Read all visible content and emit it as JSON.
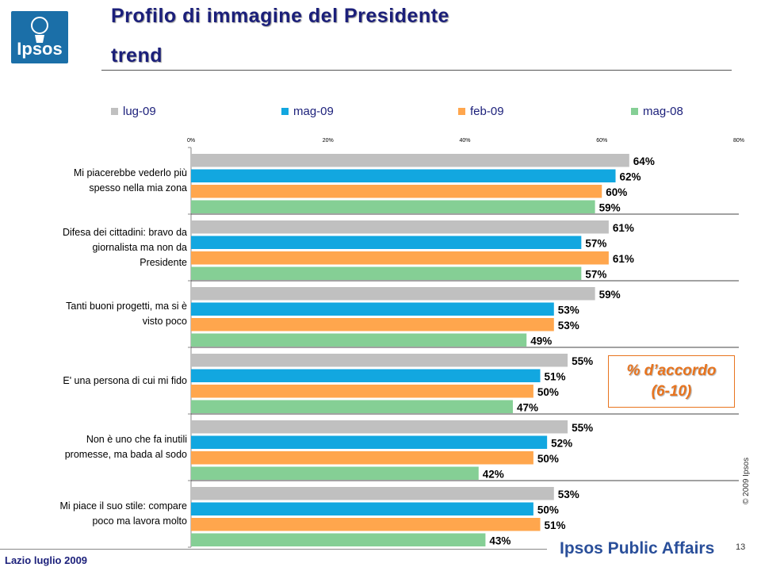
{
  "header": {
    "logo_text": "Ipsos",
    "title": "Profilo di immagine del Presidente",
    "subtitle": "trend"
  },
  "annotation": {
    "line1": "% d’accordo",
    "line2": "(6-10)"
  },
  "footer": {
    "left": "Lazio luglio 2009",
    "brand": "Ipsos Public Affairs",
    "copyright": "© 2009 Ipsos",
    "page_number": "13"
  },
  "colors": {
    "lug-09": "#c0c0c0",
    "mag-09": "#12a7e0",
    "feb-09": "#ffa64d",
    "mag-08": "#85cf95",
    "title": "#1b1f7a",
    "annotation": "#e8741e"
  },
  "chart_data": {
    "type": "bar",
    "orientation": "horizontal",
    "x_ticks": [
      "0%",
      "20%",
      "40%",
      "60%",
      "80%"
    ],
    "xlim": [
      0,
      80
    ],
    "legend_position": "top",
    "categories": [
      [
        "Mi piacerebbe vederlo più",
        "spesso nella mia zona"
      ],
      [
        "Difesa dei cittadini: bravo da",
        "giornalista ma non da",
        "Presidente"
      ],
      [
        "Tanti buoni progetti, ma si è",
        "visto poco"
      ],
      [
        "E' una persona di cui mi fido"
      ],
      [
        "Non è uno che fa inutili",
        "promesse, ma bada al sodo"
      ],
      [
        "Mi piace il suo stile: compare",
        "poco ma lavora molto"
      ]
    ],
    "series": [
      {
        "name": "lug-09",
        "values": [
          64,
          61,
          59,
          55,
          55,
          53
        ]
      },
      {
        "name": "mag-09",
        "values": [
          62,
          57,
          53,
          51,
          52,
          50
        ]
      },
      {
        "name": "feb-09",
        "values": [
          60,
          61,
          53,
          50,
          50,
          51
        ]
      },
      {
        "name": "mag-08",
        "values": [
          59,
          57,
          49,
          47,
          42,
          43
        ]
      }
    ]
  }
}
